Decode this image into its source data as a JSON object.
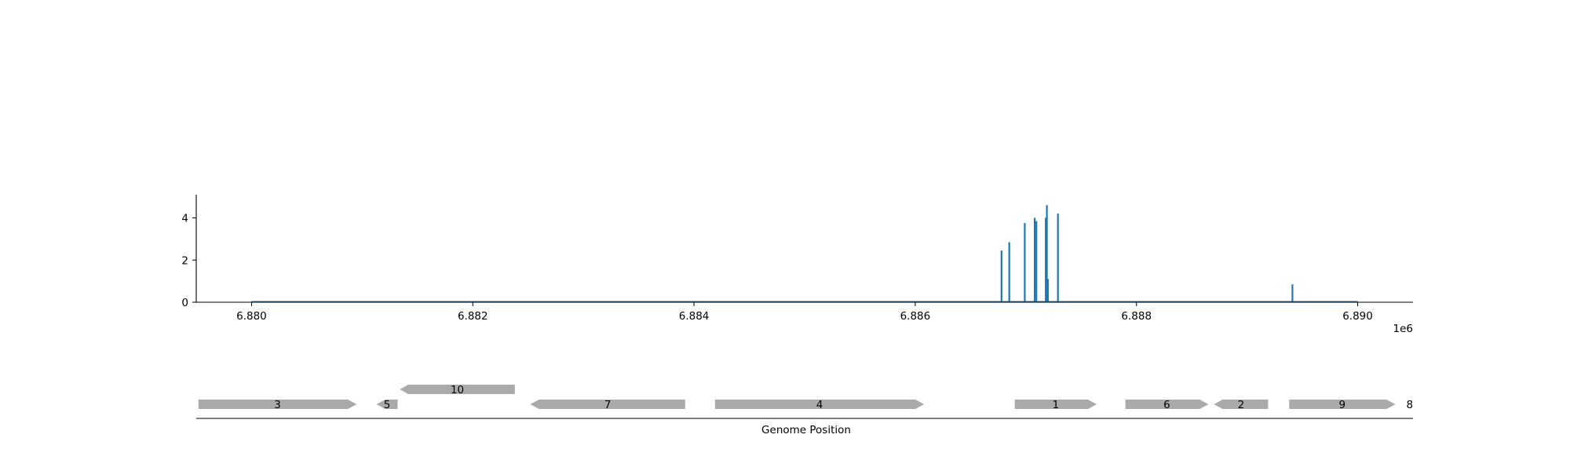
{
  "colors": {
    "signal": "#1f77b4",
    "gene": "#aaaaaa",
    "axis": "#000000",
    "text": "#000000"
  },
  "chart_data": [
    {
      "type": "bar",
      "xlim": [
        6879500,
        6890500
      ],
      "ylim": [
        0,
        5.1
      ],
      "x_offset_label": "1e6",
      "x_ticks": [
        {
          "value": 6880000,
          "label": "6.880"
        },
        {
          "value": 6882000,
          "label": "6.882"
        },
        {
          "value": 6884000,
          "label": "6.884"
        },
        {
          "value": 6886000,
          "label": "6.886"
        },
        {
          "value": 6888000,
          "label": "6.888"
        },
        {
          "value": 6890000,
          "label": "6.890"
        }
      ],
      "y_ticks": [
        {
          "value": 0,
          "label": "0"
        },
        {
          "value": 2,
          "label": "2"
        },
        {
          "value": 4,
          "label": "4"
        }
      ],
      "baseline_range": [
        6880000,
        6890000
      ],
      "spikes": [
        {
          "x": 6886780,
          "y": 2.45
        },
        {
          "x": 6886850,
          "y": 2.85
        },
        {
          "x": 6886990,
          "y": 3.75
        },
        {
          "x": 6887080,
          "y": 4.0
        },
        {
          "x": 6887095,
          "y": 3.85
        },
        {
          "x": 6887180,
          "y": 4.0
        },
        {
          "x": 6887190,
          "y": 4.6
        },
        {
          "x": 6887200,
          "y": 1.1
        },
        {
          "x": 6887290,
          "y": 4.2
        },
        {
          "x": 6889410,
          "y": 0.85
        }
      ]
    },
    {
      "type": "gene-track",
      "xlabel": "Genome Position",
      "genes": [
        {
          "label": "3",
          "start": 6879520,
          "end": 6880950,
          "strand": "+",
          "row": 0
        },
        {
          "label": "5",
          "start": 6881130,
          "end": 6881320,
          "strand": "-",
          "row": 0
        },
        {
          "label": "10",
          "start": 6881340,
          "end": 6882380,
          "strand": "-",
          "row": 1
        },
        {
          "label": "7",
          "start": 6882520,
          "end": 6883920,
          "strand": "-",
          "row": 0
        },
        {
          "label": "4",
          "start": 6884190,
          "end": 6886080,
          "strand": "+",
          "row": 0
        },
        {
          "label": "1",
          "start": 6886900,
          "end": 6887640,
          "strand": "+",
          "row": 0
        },
        {
          "label": "6",
          "start": 6887900,
          "end": 6888650,
          "strand": "+",
          "row": 0
        },
        {
          "label": "2",
          "start": 6888700,
          "end": 6889190,
          "strand": "-",
          "row": 0
        },
        {
          "label": "9",
          "start": 6889380,
          "end": 6890340,
          "strand": "+",
          "row": 0
        },
        {
          "label": "8",
          "start": 6890460,
          "end": 6890480,
          "strand": "+",
          "row": 0
        }
      ]
    }
  ]
}
